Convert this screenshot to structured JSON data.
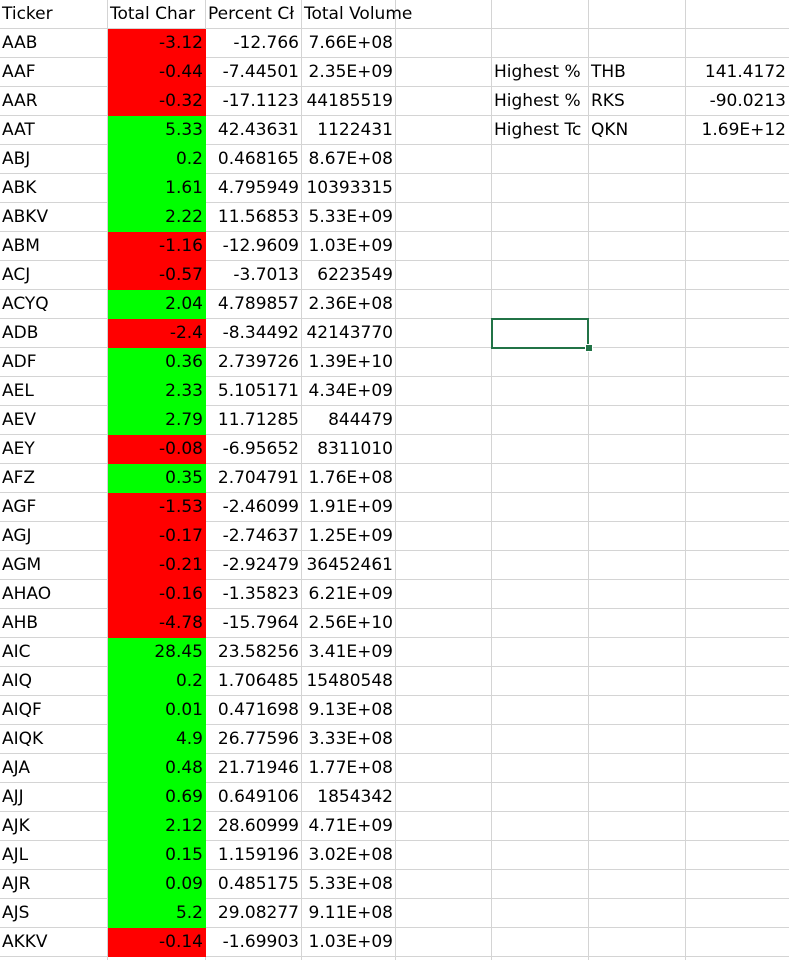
{
  "headers": {
    "ticker": "Ticker",
    "total_change": "Total Char",
    "percent_change": "Percent Cł",
    "total_volume": "Total Volume"
  },
  "rows": [
    {
      "ticker": "AAB",
      "change": "-3.12",
      "percent": "-12.766",
      "volume": "7.66E+08",
      "sign": "neg"
    },
    {
      "ticker": "AAF",
      "change": "-0.44",
      "percent": "-7.44501",
      "volume": "2.35E+09",
      "sign": "neg"
    },
    {
      "ticker": "AAR",
      "change": "-0.32",
      "percent": "-17.1123",
      "volume": "44185519",
      "sign": "neg"
    },
    {
      "ticker": "AAT",
      "change": "5.33",
      "percent": "42.43631",
      "volume": "1122431",
      "sign": "pos"
    },
    {
      "ticker": "ABJ",
      "change": "0.2",
      "percent": "0.468165",
      "volume": "8.67E+08",
      "sign": "pos"
    },
    {
      "ticker": "ABK",
      "change": "1.61",
      "percent": "4.795949",
      "volume": "10393315",
      "sign": "pos"
    },
    {
      "ticker": "ABKV",
      "change": "2.22",
      "percent": "11.56853",
      "volume": "5.33E+09",
      "sign": "pos"
    },
    {
      "ticker": "ABM",
      "change": "-1.16",
      "percent": "-12.9609",
      "volume": "1.03E+09",
      "sign": "neg"
    },
    {
      "ticker": "ACJ",
      "change": "-0.57",
      "percent": "-3.7013",
      "volume": "6223549",
      "sign": "neg"
    },
    {
      "ticker": "ACYQ",
      "change": "2.04",
      "percent": "4.789857",
      "volume": "2.36E+08",
      "sign": "pos"
    },
    {
      "ticker": "ADB",
      "change": "-2.4",
      "percent": "-8.34492",
      "volume": "42143770",
      "sign": "neg"
    },
    {
      "ticker": "ADF",
      "change": "0.36",
      "percent": "2.739726",
      "volume": "1.39E+10",
      "sign": "pos"
    },
    {
      "ticker": "AEL",
      "change": "2.33",
      "percent": "5.105171",
      "volume": "4.34E+09",
      "sign": "pos"
    },
    {
      "ticker": "AEV",
      "change": "2.79",
      "percent": "11.71285",
      "volume": "844479",
      "sign": "pos"
    },
    {
      "ticker": "AEY",
      "change": "-0.08",
      "percent": "-6.95652",
      "volume": "8311010",
      "sign": "neg"
    },
    {
      "ticker": "AFZ",
      "change": "0.35",
      "percent": "2.704791",
      "volume": "1.76E+08",
      "sign": "pos"
    },
    {
      "ticker": "AGF",
      "change": "-1.53",
      "percent": "-2.46099",
      "volume": "1.91E+09",
      "sign": "neg"
    },
    {
      "ticker": "AGJ",
      "change": "-0.17",
      "percent": "-2.74637",
      "volume": "1.25E+09",
      "sign": "neg"
    },
    {
      "ticker": "AGM",
      "change": "-0.21",
      "percent": "-2.92479",
      "volume": "36452461",
      "sign": "neg"
    },
    {
      "ticker": "AHAO",
      "change": "-0.16",
      "percent": "-1.35823",
      "volume": "6.21E+09",
      "sign": "neg"
    },
    {
      "ticker": "AHB",
      "change": "-4.78",
      "percent": "-15.7964",
      "volume": "2.56E+10",
      "sign": "neg"
    },
    {
      "ticker": "AIC",
      "change": "28.45",
      "percent": "23.58256",
      "volume": "3.41E+09",
      "sign": "pos"
    },
    {
      "ticker": "AIQ",
      "change": "0.2",
      "percent": "1.706485",
      "volume": "15480548",
      "sign": "pos"
    },
    {
      "ticker": "AIQF",
      "change": "0.01",
      "percent": "0.471698",
      "volume": "9.13E+08",
      "sign": "pos"
    },
    {
      "ticker": "AIQK",
      "change": "4.9",
      "percent": "26.77596",
      "volume": "3.33E+08",
      "sign": "pos"
    },
    {
      "ticker": "AJA",
      "change": "0.48",
      "percent": "21.71946",
      "volume": "1.77E+08",
      "sign": "pos"
    },
    {
      "ticker": "AJJ",
      "change": "0.69",
      "percent": "0.649106",
      "volume": "1854342",
      "sign": "pos"
    },
    {
      "ticker": "AJK",
      "change": "2.12",
      "percent": "28.60999",
      "volume": "4.71E+09",
      "sign": "pos"
    },
    {
      "ticker": "AJL",
      "change": "0.15",
      "percent": "1.159196",
      "volume": "3.02E+08",
      "sign": "pos"
    },
    {
      "ticker": "AJR",
      "change": "0.09",
      "percent": "0.485175",
      "volume": "5.33E+08",
      "sign": "pos"
    },
    {
      "ticker": "AJS",
      "change": "5.2",
      "percent": "29.08277",
      "volume": "9.11E+08",
      "sign": "pos"
    },
    {
      "ticker": "AKKV",
      "change": "-0.14",
      "percent": "-1.69903",
      "volume": "1.03E+09",
      "sign": "neg"
    }
  ],
  "summary": [
    {
      "label": "Highest %",
      "ticker": "THB",
      "value": "141.4172"
    },
    {
      "label": "Highest %",
      "ticker": "RKS",
      "value": "-90.0213"
    },
    {
      "label": "Highest Tc",
      "ticker": "QKN",
      "value": "1.69E+12"
    }
  ],
  "colors": {
    "negative_fill": "#ff0000",
    "positive_fill": "#00ff00",
    "gridline": "#d4d4d4",
    "selection": "#217346"
  }
}
